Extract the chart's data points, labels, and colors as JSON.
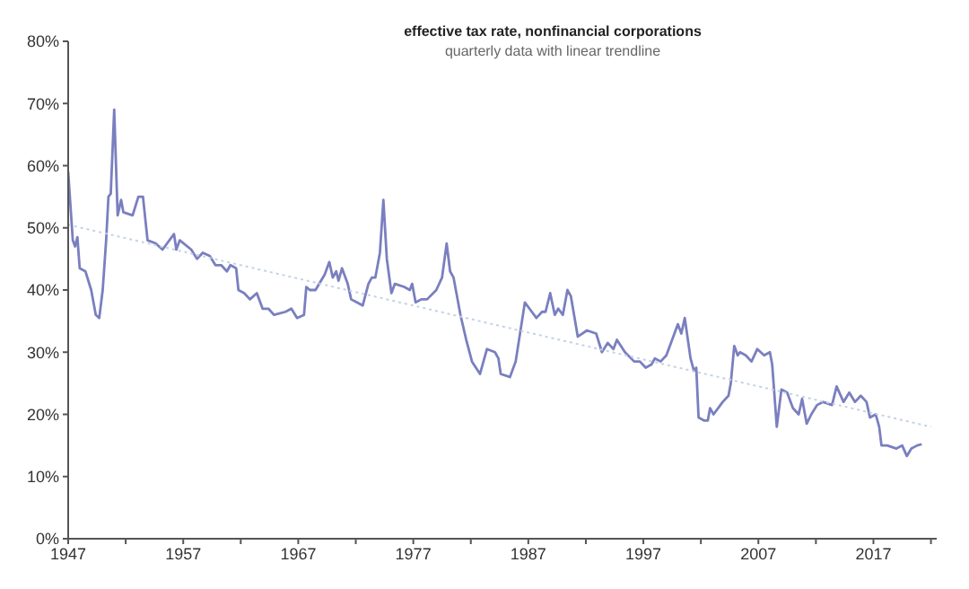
{
  "chart_data": {
    "type": "line",
    "title": "effective tax rate, nonfinancial corporations",
    "subtitle": "quarterly data with linear trendline",
    "xlim": [
      1947,
      2022.5
    ],
    "xticks": [
      1947,
      {
        "value": 1952,
        "label": null
      },
      1957,
      {
        "value": 1962,
        "label": null
      },
      1967,
      {
        "value": 1972,
        "label": null
      },
      1977,
      {
        "value": 1982,
        "label": null
      },
      1987,
      {
        "value": 1992,
        "label": null
      },
      1997,
      {
        "value": 2002,
        "label": null
      },
      2007,
      {
        "value": 2012,
        "label": null
      },
      2017,
      {
        "value": 2022,
        "label": null
      }
    ],
    "ylim": [
      0,
      80
    ],
    "yticks": [
      {
        "value": 0,
        "label": "0%"
      },
      {
        "value": 10,
        "label": "10%"
      },
      {
        "value": 20,
        "label": "20%"
      },
      {
        "value": 30,
        "label": "30%"
      },
      {
        "value": 40,
        "label": "40%"
      },
      {
        "value": 50,
        "label": "50%"
      },
      {
        "value": 60,
        "label": "60%"
      },
      {
        "value": 70,
        "label": "70%"
      },
      {
        "value": 80,
        "label": "80%"
      }
    ],
    "marker": "none",
    "series": [
      {
        "color": "#7a7fbf",
        "line_style": "solid",
        "x": [
          1947.0,
          1947.4,
          1947.6,
          1947.8,
          1948.0,
          1948.5,
          1949.0,
          1949.4,
          1949.7,
          1950.0,
          1950.3,
          1950.5,
          1950.7,
          1951.0,
          1951.3,
          1951.6,
          1951.8,
          1952.6,
          1953.1,
          1953.5,
          1953.9,
          1954.6,
          1955.2,
          1956.2,
          1956.4,
          1956.7,
          1957.7,
          1958.2,
          1958.7,
          1959.3,
          1959.8,
          1960.3,
          1960.8,
          1961.1,
          1961.6,
          1961.8,
          1962.3,
          1962.8,
          1963.4,
          1963.9,
          1964.4,
          1964.9,
          1965.9,
          1966.4,
          1966.9,
          1967.5,
          1967.7,
          1968.0,
          1968.5,
          1969.3,
          1969.7,
          1970.0,
          1970.3,
          1970.5,
          1970.8,
          1971.3,
          1971.6,
          1972.1,
          1972.6,
          1973.1,
          1973.4,
          1973.7,
          1974.1,
          1974.4,
          1974.7,
          1975.1,
          1975.4,
          1976.2,
          1976.7,
          1976.9,
          1977.2,
          1977.7,
          1978.2,
          1979.0,
          1979.5,
          1979.9,
          1980.2,
          1980.5,
          1981.1,
          1981.6,
          1982.1,
          1982.8,
          1983.4,
          1984.1,
          1984.4,
          1984.6,
          1985.4,
          1985.9,
          1986.7,
          1987.1,
          1987.7,
          1988.2,
          1988.5,
          1988.9,
          1989.3,
          1989.6,
          1990.0,
          1990.4,
          1990.7,
          1991.3,
          1992.1,
          1992.9,
          1993.4,
          1993.9,
          1994.4,
          1994.7,
          1995.4,
          1996.2,
          1996.7,
          1997.2,
          1997.7,
          1998.0,
          1998.5,
          1999.0,
          1999.5,
          2000.0,
          2000.3,
          2000.6,
          2001.1,
          2001.4,
          2001.6,
          2001.8,
          2002.3,
          2002.6,
          2002.8,
          2003.1,
          2003.9,
          2004.4,
          2004.6,
          2004.9,
          2005.2,
          2005.4,
          2005.9,
          2006.4,
          2006.9,
          2007.5,
          2008.0,
          2008.2,
          2008.6,
          2009.0,
          2009.5,
          2010.0,
          2010.5,
          2010.8,
          2011.2,
          2011.6,
          2012.1,
          2012.6,
          2013.4,
          2013.8,
          2014.4,
          2014.9,
          2015.4,
          2015.9,
          2016.4,
          2016.7,
          2017.2,
          2017.5,
          2017.7,
          2018.2,
          2019.0,
          2019.5,
          2019.9,
          2020.3,
          2020.8,
          2021.2
        ],
        "values": [
          59,
          48,
          47,
          48.5,
          43.5,
          43,
          40,
          36,
          35.5,
          40,
          48,
          55,
          55.5,
          69,
          52,
          54.5,
          52.5,
          52,
          55,
          55,
          48,
          47.5,
          46.5,
          49,
          46.5,
          48,
          46.5,
          45,
          46,
          45.5,
          44,
          44,
          43,
          44,
          43.5,
          40,
          39.5,
          38.5,
          39.5,
          37,
          37,
          36,
          36.5,
          37,
          35.5,
          36,
          40.5,
          40,
          40,
          42.5,
          44.5,
          42,
          43,
          41.5,
          43.5,
          41,
          38.5,
          38,
          37.5,
          41,
          42,
          42,
          46,
          54.5,
          45,
          39.5,
          41,
          40.5,
          40,
          41,
          38,
          38.5,
          38.5,
          40,
          42,
          47.5,
          43,
          42,
          36,
          32,
          28.5,
          26.5,
          30.5,
          30,
          29,
          26.5,
          26,
          28.5,
          38,
          37,
          35.5,
          36.5,
          36.5,
          39.5,
          36,
          37,
          36,
          40,
          39,
          32.5,
          33.5,
          33,
          30,
          31.5,
          30.5,
          32,
          30,
          28.5,
          28.5,
          27.5,
          28,
          29,
          28.5,
          29.5,
          32,
          34.5,
          33,
          35.5,
          29,
          27,
          27.5,
          19.5,
          19,
          19,
          21,
          20,
          22,
          23,
          25,
          31,
          29.5,
          30,
          29.5,
          28.5,
          30.5,
          29.5,
          30,
          28,
          18,
          24,
          23.5,
          21,
          20,
          22.5,
          18.5,
          20,
          21.5,
          22,
          21.5,
          24.5,
          22,
          23.5,
          22,
          23,
          22,
          19.5,
          20,
          18,
          15,
          15,
          14.5,
          15,
          13.3,
          14.5,
          15,
          15.2
        ]
      },
      {
        "color": "#c4d2e4",
        "line_style": "dotted",
        "x": [
          1947,
          2022
        ],
        "values": [
          50.5,
          18
        ]
      }
    ]
  }
}
